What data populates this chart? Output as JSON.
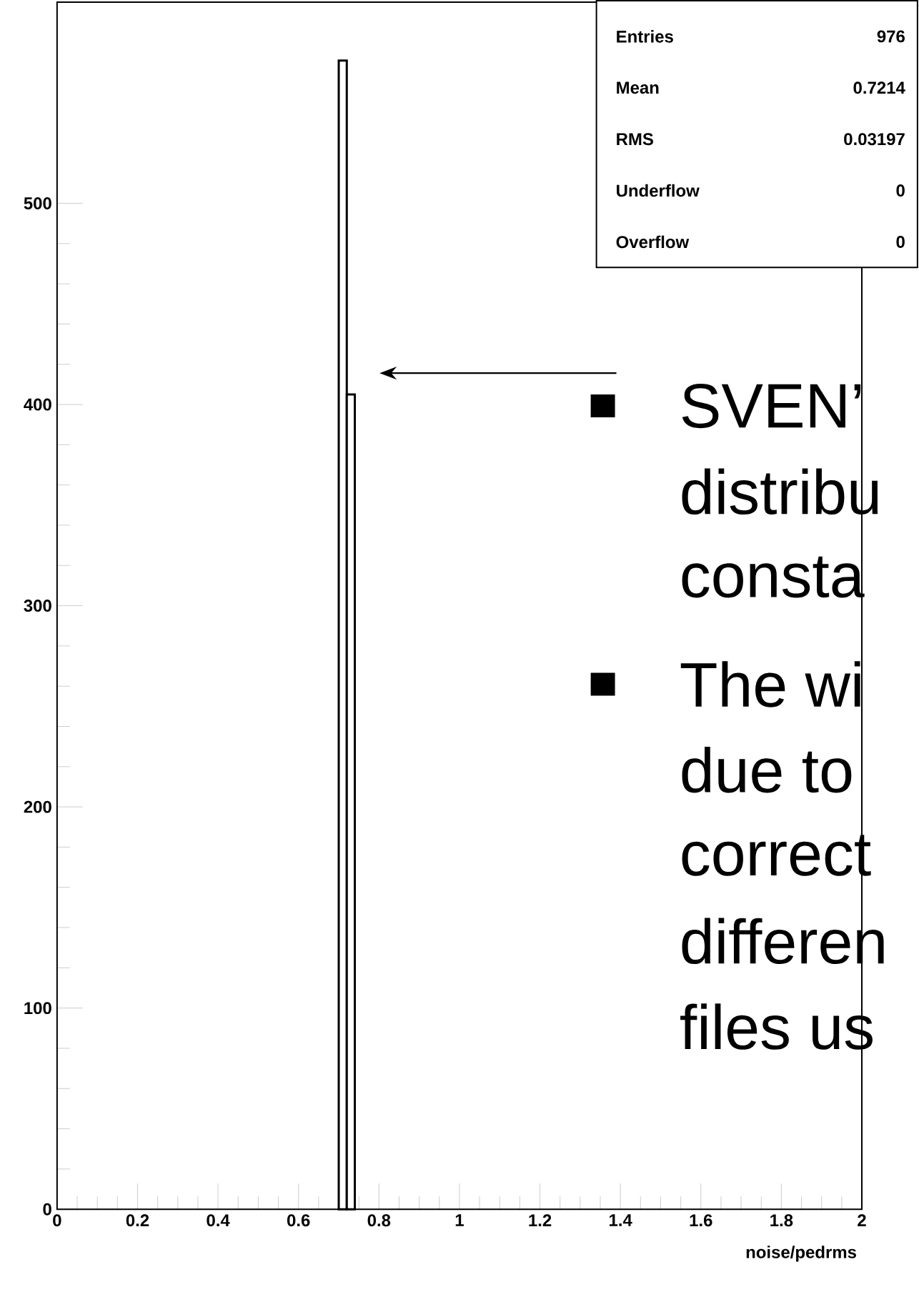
{
  "chart_data": {
    "type": "histogram",
    "bins": [
      0.7,
      0.72,
      0.74
    ],
    "values": [
      571,
      405
    ],
    "color": "#000000",
    "xlim": [
      0,
      2
    ],
    "ylim": [
      0,
      600
    ],
    "xticks": [
      0,
      0.2,
      0.4,
      0.6,
      0.8,
      1,
      1.2,
      1.4,
      1.6,
      1.8,
      2
    ],
    "yticks": [
      0,
      100,
      200,
      300,
      400,
      500
    ],
    "xlabel": "noise/pedrms",
    "annotations": [
      "Entries",
      "976",
      "Mean",
      "0.7214",
      "RMS",
      "0.03197",
      "Underflow",
      "0",
      "Overflow",
      "0",
      "SVEN’",
      "distribu",
      "consta",
      "The wi",
      "due to",
      "correct",
      "differen",
      "files us"
    ]
  }
}
